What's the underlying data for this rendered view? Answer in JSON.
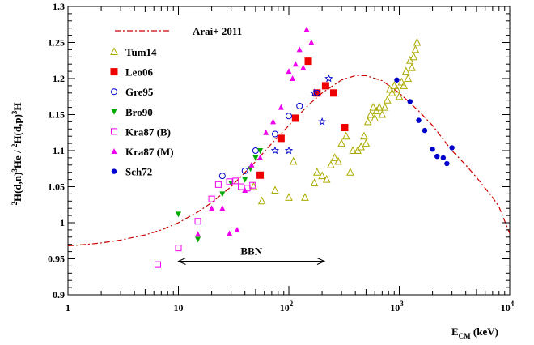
{
  "chart_data": {
    "type": "scatter",
    "title": "",
    "xlabel": "E_CM (keV)",
    "xlabel_main": "E",
    "xlabel_sub": "CM",
    "xlabel_unit": "(keV)",
    "ylabel": "2H(d,n)3He / 2H(d,p)3H",
    "xscale": "log",
    "xlim": [
      1,
      10000
    ],
    "ylim": [
      0.9,
      1.3
    ],
    "xticks": [
      {
        "value": 1,
        "label": "1"
      },
      {
        "value": 10,
        "label": "10"
      },
      {
        "value": 100,
        "label": "10",
        "exp": "2"
      },
      {
        "value": 1000,
        "label": "10",
        "exp": "3"
      },
      {
        "value": 10000,
        "label": "10",
        "exp": "4"
      }
    ],
    "yticks": [
      {
        "value": 0.9,
        "label": "0.9"
      },
      {
        "value": 0.95,
        "label": "0.95"
      },
      {
        "value": 1.0,
        "label": "1"
      },
      {
        "value": 1.05,
        "label": "1.05"
      },
      {
        "value": 1.1,
        "label": "1.1"
      },
      {
        "value": 1.15,
        "label": "1.15"
      },
      {
        "value": 1.2,
        "label": "1.2"
      },
      {
        "value": 1.25,
        "label": "1.25"
      },
      {
        "value": 1.3,
        "label": "1.3"
      }
    ],
    "grid": false,
    "legend_position": "top-left",
    "annotation": {
      "text": "BBN",
      "x_start": 10,
      "x_end": 210,
      "y": 0.95
    },
    "curve": {
      "name": "Arai+ 2011",
      "color": "#cc0000",
      "points": [
        [
          1,
          0.968
        ],
        [
          1.5,
          0.97
        ],
        [
          2,
          0.972
        ],
        [
          3,
          0.976
        ],
        [
          5,
          0.983
        ],
        [
          7,
          0.99
        ],
        [
          10,
          1.0
        ],
        [
          15,
          1.015
        ],
        [
          20,
          1.028
        ],
        [
          30,
          1.05
        ],
        [
          50,
          1.085
        ],
        [
          70,
          1.11
        ],
        [
          100,
          1.135
        ],
        [
          150,
          1.163
        ],
        [
          200,
          1.18
        ],
        [
          300,
          1.198
        ],
        [
          400,
          1.204
        ],
        [
          500,
          1.204
        ],
        [
          700,
          1.197
        ],
        [
          1000,
          1.18
        ],
        [
          1500,
          1.155
        ],
        [
          2000,
          1.135
        ],
        [
          3000,
          1.1
        ],
        [
          4000,
          1.08
        ],
        [
          5000,
          1.063
        ],
        [
          7000,
          1.035
        ],
        [
          8000,
          1.022
        ],
        [
          10000,
          0.985
        ]
      ]
    },
    "series": [
      {
        "name": "Tum14",
        "marker": "triangle-open",
        "color": "#aaaa00",
        "points": [
          [
            48,
            1.05
          ],
          [
            57,
            1.03
          ],
          [
            75,
            1.045
          ],
          [
            100,
            1.035
          ],
          [
            110,
            1.085
          ],
          [
            140,
            1.035
          ],
          [
            170,
            1.055
          ],
          [
            180,
            1.07
          ],
          [
            200,
            1.065
          ],
          [
            220,
            1.06
          ],
          [
            240,
            1.08
          ],
          [
            260,
            1.09
          ],
          [
            280,
            1.085
          ],
          [
            300,
            1.11
          ],
          [
            330,
            1.12
          ],
          [
            360,
            1.07
          ],
          [
            380,
            1.1
          ],
          [
            420,
            1.1
          ],
          [
            450,
            1.105
          ],
          [
            480,
            1.12
          ],
          [
            500,
            1.11
          ],
          [
            520,
            1.14
          ],
          [
            550,
            1.15
          ],
          [
            580,
            1.16
          ],
          [
            600,
            1.145
          ],
          [
            620,
            1.155
          ],
          [
            660,
            1.16
          ],
          [
            700,
            1.15
          ],
          [
            740,
            1.16
          ],
          [
            780,
            1.17
          ],
          [
            820,
            1.185
          ],
          [
            860,
            1.18
          ],
          [
            900,
            1.19
          ],
          [
            950,
            1.185
          ],
          [
            1000,
            1.175
          ],
          [
            1050,
            1.195
          ],
          [
            1100,
            1.19
          ],
          [
            1150,
            1.21
          ],
          [
            1200,
            1.2
          ],
          [
            1250,
            1.225
          ],
          [
            1300,
            1.215
          ],
          [
            1350,
            1.23
          ],
          [
            1400,
            1.24
          ],
          [
            1450,
            1.25
          ]
        ]
      },
      {
        "name": "Leo06",
        "marker": "square-filled",
        "color": "#ee0000",
        "points": [
          [
            55,
            1.066
          ],
          [
            85,
            1.117
          ],
          [
            115,
            1.145
          ],
          [
            150,
            1.224
          ],
          [
            180,
            1.18
          ],
          [
            215,
            1.19
          ],
          [
            255,
            1.18
          ],
          [
            320,
            1.132
          ]
        ]
      },
      {
        "name": "Gre95",
        "marker": "circle-open",
        "color": "#0000cc",
        "points": [
          [
            25,
            1.065
          ],
          [
            40,
            1.072
          ],
          [
            50,
            1.1
          ],
          [
            75,
            1.123
          ],
          [
            100,
            1.148
          ],
          [
            125,
            1.162
          ],
          [
            180,
            1.18
          ]
        ]
      },
      {
        "name": "Bro90",
        "marker": "triangle-down-filled",
        "color": "#00aa00",
        "points": [
          [
            10,
            1.012
          ],
          [
            15,
            0.977
          ],
          [
            25,
            1.04
          ],
          [
            30,
            1.055
          ],
          [
            40,
            1.06
          ],
          [
            45,
            1.075
          ],
          [
            50,
            1.09
          ],
          [
            55,
            1.1
          ]
        ]
      },
      {
        "name": "Kra87 (B)",
        "marker": "square-open",
        "color": "#ee00ee",
        "points": [
          [
            6.5,
            0.942
          ],
          [
            10,
            0.965
          ],
          [
            15,
            1.002
          ],
          [
            20,
            1.033
          ],
          [
            23,
            1.053
          ],
          [
            29,
            1.057
          ],
          [
            33,
            1.058
          ],
          [
            37,
            1.05
          ],
          [
            42,
            1.048
          ],
          [
            47,
            1.052
          ]
        ]
      },
      {
        "name": "Kra87 (M)",
        "marker": "triangle-filled",
        "color": "#ee00ee",
        "points": [
          [
            15,
            0.984
          ],
          [
            20,
            1.02
          ],
          [
            25,
            1.02
          ],
          [
            29,
            0.985
          ],
          [
            34,
            0.99
          ],
          [
            40,
            1.045
          ],
          [
            46,
            1.08
          ],
          [
            55,
            1.09
          ],
          [
            62,
            1.125
          ],
          [
            72,
            1.14
          ],
          [
            85,
            1.16
          ],
          [
            100,
            1.21
          ],
          [
            108,
            1.2
          ],
          [
            115,
            1.22
          ],
          [
            125,
            1.24
          ],
          [
            135,
            1.215
          ],
          [
            145,
            1.268
          ],
          [
            160,
            1.25
          ]
        ]
      },
      {
        "name": "Sch72",
        "marker": "circle-filled",
        "color": "#0000cc",
        "points": [
          [
            950,
            1.198
          ],
          [
            1250,
            1.168
          ],
          [
            1500,
            1.142
          ],
          [
            1700,
            1.128
          ],
          [
            2000,
            1.102
          ],
          [
            2200,
            1.092
          ],
          [
            2500,
            1.09
          ],
          [
            2700,
            1.082
          ],
          [
            3000,
            1.104
          ]
        ]
      },
      {
        "name": "",
        "marker": "star-open",
        "color": "#0000cc",
        "points": [
          [
            75,
            1.1
          ],
          [
            100,
            1.1
          ],
          [
            170,
            1.18
          ],
          [
            200,
            1.14
          ],
          [
            230,
            1.2
          ]
        ]
      }
    ]
  }
}
